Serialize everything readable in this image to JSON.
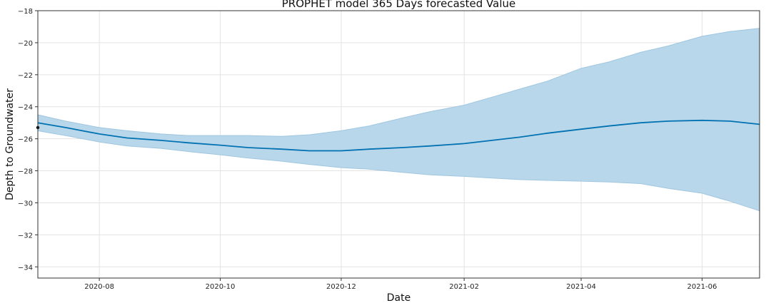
{
  "chart_data": {
    "type": "line",
    "title": "PROPHET model 365 Days forecasted Value",
    "xlabel": "Date",
    "ylabel": "Depth to Groundwater",
    "x_range": [
      "2020-07-01",
      "2021-06-30"
    ],
    "ylim": [
      -34.7,
      -18
    ],
    "y_ticks": [
      -34,
      -32,
      -30,
      -28,
      -26,
      -24,
      -22,
      -20,
      -18
    ],
    "y_tick_labels": [
      "−34",
      "−32",
      "−30",
      "−28",
      "−26",
      "−24",
      "−22",
      "−20",
      "−18"
    ],
    "x_ticks": [
      "2020-08-01",
      "2020-10-01",
      "2020-12-01",
      "2021-02-01",
      "2021-04-01",
      "2021-06-01"
    ],
    "x_tick_labels": [
      "2020-08",
      "2020-10",
      "2020-12",
      "2021-02",
      "2021-04",
      "2021-06"
    ],
    "grid": true,
    "colors": {
      "forecast": "#0072B2",
      "interval": "#b9d7ea",
      "interval_edge": "#9fc6e0",
      "observed": "#000000"
    },
    "observed_point": {
      "x": "2020-07-01",
      "y": -25.3
    },
    "forecast": {
      "x": [
        "2020-07-01",
        "2020-07-15",
        "2020-08-01",
        "2020-08-15",
        "2020-09-01",
        "2020-09-15",
        "2020-10-01",
        "2020-10-15",
        "2020-11-01",
        "2020-11-15",
        "2020-12-01",
        "2020-12-15",
        "2021-01-01",
        "2021-01-15",
        "2021-02-01",
        "2021-02-15",
        "2021-03-01",
        "2021-03-15",
        "2021-04-01",
        "2021-04-15",
        "2021-05-01",
        "2021-05-15",
        "2021-06-01",
        "2021-06-15",
        "2021-06-30"
      ],
      "yhat": [
        -25.0,
        -25.3,
        -25.7,
        -25.95,
        -26.1,
        -26.25,
        -26.4,
        -26.55,
        -26.65,
        -26.75,
        -26.75,
        -26.65,
        -26.55,
        -26.45,
        -26.3,
        -26.1,
        -25.9,
        -25.65,
        -25.4,
        -25.2,
        -25.0,
        -24.9,
        -24.85,
        -24.9,
        -25.1
      ],
      "yhat_upper": [
        -24.5,
        -24.9,
        -25.3,
        -25.5,
        -25.7,
        -25.8,
        -25.8,
        -25.8,
        -25.85,
        -25.75,
        -25.5,
        -25.2,
        -24.7,
        -24.3,
        -23.9,
        -23.4,
        -22.9,
        -22.4,
        -21.6,
        -21.2,
        -20.6,
        -20.2,
        -19.6,
        -19.3,
        -19.1
      ],
      "yhat_lower": [
        -25.5,
        -25.8,
        -26.2,
        -26.45,
        -26.6,
        -26.8,
        -27.0,
        -27.2,
        -27.4,
        -27.6,
        -27.8,
        -27.9,
        -28.1,
        -28.25,
        -28.35,
        -28.45,
        -28.55,
        -28.6,
        -28.65,
        -28.7,
        -28.8,
        -29.1,
        -29.4,
        -29.9,
        -30.5
      ]
    }
  }
}
